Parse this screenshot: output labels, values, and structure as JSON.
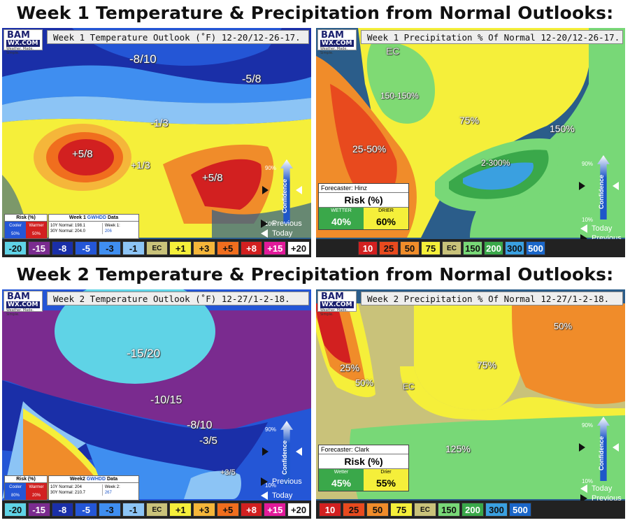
{
  "titles": {
    "week1": "Week 1 Temperature & Precipitation from Normal Outlooks:",
    "week2": "Week 2 Temperature & Precipitation from Normal Outlooks:"
  },
  "logo": {
    "line1": "BAM",
    "line2": "WX.COM",
    "tag": "Weather. Made. Simple."
  },
  "colors": {
    "temp_scale": [
      "#5fd3e6",
      "#7a2b8f",
      "#1a2fa8",
      "#2456d6",
      "#3f8ef0",
      "#8cc4f5",
      "#c9c27a",
      "#f5ef3a",
      "#f5b63a",
      "#f06e1e",
      "#d22020",
      "#e21a9a",
      "#ffffff"
    ],
    "precip_scale": [
      "#d22020",
      "#e84a1e",
      "#f08c2a",
      "#f5ef3a",
      "#c9c27a",
      "#78d877",
      "#3aa84a",
      "#3aa0e0",
      "#1a66c8"
    ]
  },
  "panels": {
    "w1_temp": {
      "title": "Week 1 Temperature Outlook (˚F) 12-20/12-26-17.",
      "labels": [
        "-8/10",
        "-5/8",
        "-1/3",
        "+5/8",
        "+1/3",
        "+5/8"
      ],
      "risk": {
        "title": "Risk (%)",
        "cooler": "Cooler",
        "warmer": "Warmer",
        "cooler_val": "50%",
        "warmer_val": "50%"
      },
      "hdd": {
        "title_a": "Week 1 ",
        "title_b": "GWHDD",
        "title_c": " Data",
        "normal10": "10Y Normal: 198.1",
        "normal30": "30Y Normal: 204.0",
        "week_label": "Week 1:",
        "week_val": "206"
      },
      "confidence": {
        "label": "Confidence",
        "high": "90%",
        "low": "10%"
      },
      "previous": "Previous",
      "today": "Today",
      "legend": [
        "-20",
        "-15",
        "-8",
        "-5",
        "-3",
        "-1",
        "EC",
        "+1",
        "+3",
        "+5",
        "+8",
        "+15",
        "+20"
      ]
    },
    "w1_precip": {
      "title": "Week 1 Precipitation % Of Normal 12-20/12-26-17.",
      "labels": [
        "EC",
        "150-150%",
        "75%",
        "150%",
        "25-50%",
        "2-300%"
      ],
      "forecaster": "Forecaster: Hinz",
      "risk_title": "Risk (%)",
      "wetter": "WETTER",
      "drier": "DRIER",
      "wetter_val": "40%",
      "drier_val": "60%",
      "confidence": {
        "label": "Confidence",
        "high": "90%",
        "low": "10%"
      },
      "today": "Today",
      "previous": "Previous",
      "legend": [
        "10",
        "25",
        "50",
        "75",
        "EC",
        "150",
        "200",
        "300",
        "500"
      ]
    },
    "w2_temp": {
      "title": "Week 2 Temperature Outlook (˚F) 12-27/1-2-18.",
      "labels": [
        "-15/20",
        "-10/15",
        "-8/10",
        "-3/5",
        "+3/5"
      ],
      "risk": {
        "title": "Risk (%)",
        "cooler": "Cooler",
        "warmer": "Warmer",
        "cooler_val": "80%",
        "warmer_val": "20%"
      },
      "hdd": {
        "title_a": "Week2 ",
        "title_b": "GWHDD",
        "title_c": " Data",
        "normal10": "10Y Normal: 204",
        "normal30": "30Y Normal: 210.7",
        "week_label": "Week 2:",
        "week_val": "267"
      },
      "confidence": {
        "label": "Confidence",
        "high": "90%",
        "low": "10%"
      },
      "previous": "Previous",
      "today": "Today",
      "legend": [
        "-20",
        "-15",
        "-8",
        "-5",
        "-3",
        "-1",
        "EC",
        "+1",
        "+3",
        "+5",
        "+8",
        "+15",
        "+20"
      ]
    },
    "w2_precip": {
      "title": "Week 2 Precipitation % Of Normal 12-27/1-2-18.",
      "labels": [
        "50%",
        "25%",
        "50%",
        "EC",
        "75%",
        "125%"
      ],
      "forecaster": "Forecaster: Clark",
      "risk_title": "Risk (%)",
      "wetter": "Wetter",
      "drier": "Drier",
      "wetter_val": "45%",
      "drier_val": "55%",
      "confidence": {
        "label": "Confidence",
        "high": "90%",
        "low": "10%"
      },
      "today": "Today",
      "previous": "Previous",
      "legend": [
        "10",
        "25",
        "50",
        "75",
        "EC",
        "150",
        "200",
        "300",
        "500"
      ]
    }
  }
}
